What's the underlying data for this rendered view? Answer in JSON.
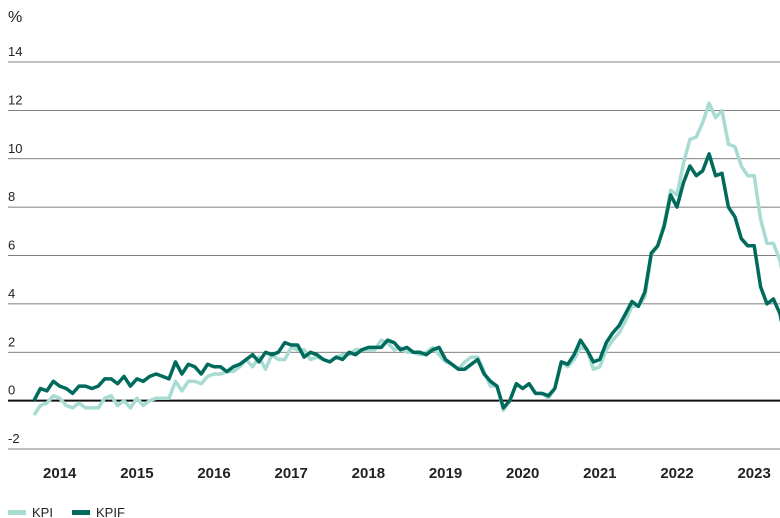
{
  "chart_data": {
    "type": "line",
    "y_unit": "%",
    "categories": [
      null,
      null,
      null,
      null,
      "2014",
      null,
      null,
      null,
      null,
      null,
      null,
      null,
      null,
      null,
      null,
      null,
      "2015",
      null,
      null,
      null,
      null,
      null,
      null,
      null,
      null,
      null,
      null,
      null,
      "2016",
      null,
      null,
      null,
      null,
      null,
      null,
      null,
      null,
      null,
      null,
      null,
      "2017",
      null,
      null,
      null,
      null,
      null,
      null,
      null,
      null,
      null,
      null,
      null,
      "2018",
      null,
      null,
      null,
      null,
      null,
      null,
      null,
      null,
      null,
      null,
      null,
      "2019",
      null,
      null,
      null,
      null,
      null,
      null,
      null,
      null,
      null,
      null,
      null,
      "2020",
      null,
      null,
      null,
      null,
      null,
      null,
      null,
      null,
      null,
      null,
      null,
      "2021",
      null,
      null,
      null,
      null,
      null,
      null,
      null,
      null,
      null,
      null,
      null,
      "2022",
      null,
      null,
      null,
      null,
      null,
      null,
      null,
      null,
      null,
      null,
      null,
      "2023",
      null,
      null,
      null,
      null,
      null
    ],
    "series": [
      {
        "name": "KPI",
        "color": "#a8dcd2",
        "values": [
          -0.6,
          -0.2,
          -0.1,
          0.2,
          0.1,
          -0.2,
          -0.3,
          -0.1,
          -0.3,
          -0.3,
          -0.3,
          0.1,
          0.2,
          -0.2,
          0.0,
          -0.3,
          0.1,
          -0.2,
          0.0,
          0.1,
          0.1,
          0.1,
          0.8,
          0.4,
          0.8,
          0.8,
          0.7,
          1.0,
          1.1,
          1.1,
          1.2,
          1.2,
          1.4,
          1.7,
          1.4,
          1.8,
          1.3,
          1.9,
          1.7,
          1.7,
          2.2,
          2.1,
          2.1,
          1.7,
          1.8,
          1.7,
          1.6,
          1.8,
          1.9,
          1.9,
          2.1,
          2.1,
          2.1,
          2.1,
          2.5,
          2.4,
          2.1,
          2.2,
          2.0,
          2.0,
          1.9,
          2.0,
          2.2,
          1.9,
          1.6,
          1.5,
          1.3,
          1.6,
          1.8,
          1.8,
          1.2,
          0.6,
          0.6,
          -0.4,
          0.0,
          0.7,
          0.5,
          0.7,
          0.3,
          0.3,
          0.1,
          0.5,
          1.6,
          1.4,
          1.7,
          2.2,
          2.1,
          1.3,
          1.4,
          2.1,
          2.5,
          2.8,
          3.3,
          3.9,
          3.9,
          4.3,
          6.0,
          6.4,
          7.3,
          8.7,
          8.5,
          9.8,
          10.8,
          10.9,
          11.5,
          12.3,
          11.7,
          12.0,
          10.6,
          10.5,
          9.7,
          9.3,
          9.3,
          7.5,
          6.5,
          6.5,
          5.8,
          4.4
        ]
      },
      {
        "name": "KPIF",
        "color": "#006b5c",
        "values": [
          0.0,
          0.5,
          0.4,
          0.8,
          0.6,
          0.5,
          0.3,
          0.6,
          0.6,
          0.5,
          0.6,
          0.9,
          0.9,
          0.7,
          1.0,
          0.6,
          0.9,
          0.8,
          1.0,
          1.1,
          1.0,
          0.9,
          1.6,
          1.1,
          1.5,
          1.4,
          1.1,
          1.5,
          1.4,
          1.4,
          1.2,
          1.4,
          1.5,
          1.7,
          1.9,
          1.6,
          2.0,
          1.9,
          2.0,
          2.4,
          2.3,
          2.3,
          1.8,
          2.0,
          1.9,
          1.7,
          1.6,
          1.8,
          1.7,
          2.0,
          1.9,
          2.1,
          2.2,
          2.2,
          2.2,
          2.5,
          2.4,
          2.1,
          2.2,
          2.0,
          2.0,
          1.9,
          2.1,
          2.2,
          1.7,
          1.5,
          1.3,
          1.3,
          1.5,
          1.7,
          1.1,
          0.8,
          0.6,
          -0.3,
          0.0,
          0.7,
          0.5,
          0.7,
          0.3,
          0.3,
          0.2,
          0.5,
          1.6,
          1.5,
          1.9,
          2.5,
          2.1,
          1.6,
          1.7,
          2.4,
          2.8,
          3.1,
          3.6,
          4.1,
          3.9,
          4.5,
          6.1,
          6.4,
          7.2,
          8.5,
          8.0,
          9.0,
          9.7,
          9.3,
          9.5,
          10.2,
          9.3,
          9.4,
          8.0,
          7.6,
          6.7,
          6.4,
          6.4,
          4.7,
          4.0,
          4.2,
          3.6,
          2.3
        ]
      }
    ],
    "ylim": [
      -2,
      14
    ],
    "yticks": [
      -2,
      0,
      2,
      4,
      6,
      8,
      10,
      12,
      14
    ],
    "grid": true,
    "legend": "bottom-left"
  }
}
